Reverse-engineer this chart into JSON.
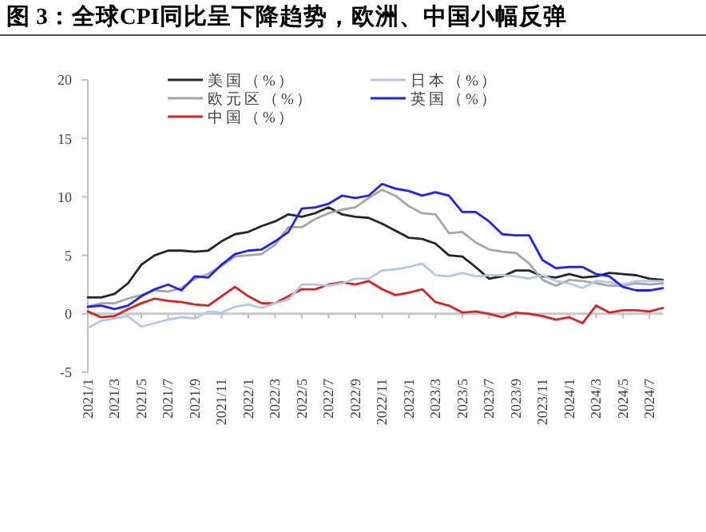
{
  "chart_data": {
    "type": "line",
    "title": "图 3：全球CPI同比呈下降趋势，欧洲、中国小幅反弹",
    "categories": [
      "2021/1",
      null,
      "2021/3",
      null,
      "2021/5",
      null,
      "2021/7",
      null,
      "2021/9",
      null,
      "2021/11",
      null,
      "2022/1",
      null,
      "2022/3",
      null,
      "2022/5",
      null,
      "2022/7",
      null,
      "2022/9",
      null,
      "2022/11",
      null,
      "2023/1",
      null,
      "2023/3",
      null,
      "2023/5",
      null,
      "2023/7",
      null,
      "2023/9",
      null,
      "2023/11",
      null,
      "2024/1",
      null,
      "2024/3",
      null,
      "2024/5",
      null,
      "2024/7",
      null
    ],
    "series": [
      {
        "name": "美国（%）",
        "color": "#262626",
        "values": [
          1.4,
          1.4,
          1.7,
          2.6,
          4.2,
          5.0,
          5.4,
          5.4,
          5.3,
          5.4,
          6.2,
          6.8,
          7.0,
          7.5,
          7.9,
          8.5,
          8.3,
          8.6,
          9.1,
          8.5,
          8.3,
          8.2,
          7.7,
          7.1,
          6.5,
          6.4,
          6.0,
          5.0,
          4.9,
          4.0,
          3.0,
          3.2,
          3.7,
          3.7,
          3.2,
          3.1,
          3.4,
          3.1,
          3.2,
          3.5,
          3.4,
          3.3,
          3.0,
          2.9
        ]
      },
      {
        "name": "欧元区（%）",
        "color": "#a6a6a6",
        "values": [
          0.6,
          0.9,
          0.9,
          1.3,
          1.6,
          2.0,
          1.9,
          2.2,
          3.0,
          3.4,
          4.1,
          4.9,
          5.0,
          5.1,
          5.9,
          7.4,
          7.4,
          8.1,
          8.6,
          8.9,
          9.1,
          9.9,
          10.6,
          10.1,
          9.2,
          8.6,
          8.5,
          6.9,
          7.0,
          6.1,
          5.5,
          5.3,
          5.2,
          4.3,
          2.9,
          2.4,
          2.9,
          2.8,
          2.6,
          2.4,
          2.4,
          2.6,
          2.5,
          2.6
        ]
      },
      {
        "name": "中国（%）",
        "color": "#e02020",
        "values": [
          0.2,
          -0.3,
          -0.2,
          0.4,
          0.9,
          1.3,
          1.1,
          1.0,
          0.8,
          0.7,
          1.5,
          2.3,
          1.5,
          0.9,
          0.9,
          1.5,
          2.1,
          2.1,
          2.5,
          2.7,
          2.5,
          2.8,
          2.1,
          1.6,
          1.8,
          2.1,
          1.0,
          0.7,
          0.1,
          0.2,
          0.0,
          -0.3,
          0.1,
          0.0,
          -0.2,
          -0.5,
          -0.3,
          -0.8,
          0.7,
          0.1,
          0.3,
          0.3,
          0.2,
          0.5
        ]
      },
      {
        "name": "日本（%）",
        "color": "#b4c7e7",
        "values": [
          -1.2,
          -0.6,
          -0.4,
          -0.2,
          -1.1,
          -0.8,
          -0.5,
          -0.3,
          -0.4,
          0.2,
          0.1,
          0.6,
          0.8,
          0.5,
          0.9,
          1.2,
          2.5,
          2.5,
          2.4,
          2.6,
          3.0,
          3.0,
          3.7,
          3.8,
          4.0,
          4.3,
          3.3,
          3.2,
          3.5,
          3.2,
          3.3,
          3.3,
          3.2,
          3.0,
          3.3,
          2.8,
          2.6,
          2.2,
          2.8,
          2.7,
          2.5,
          2.8,
          2.8,
          2.8
        ]
      },
      {
        "name": "英国（%）",
        "color": "#2020ff",
        "values": [
          0.6,
          0.7,
          0.4,
          0.7,
          1.5,
          2.1,
          2.5,
          2.0,
          3.2,
          3.1,
          4.2,
          5.1,
          5.4,
          5.5,
          6.2,
          7.0,
          9.0,
          9.1,
          9.4,
          10.1,
          9.9,
          10.1,
          11.1,
          10.7,
          10.5,
          10.1,
          10.4,
          10.1,
          8.7,
          8.7,
          7.9,
          6.8,
          6.7,
          6.7,
          4.6,
          3.9,
          4.0,
          4.0,
          3.4,
          3.2,
          2.3,
          2.0,
          2.0,
          2.2
        ]
      }
    ],
    "ylim": [
      -5,
      20
    ],
    "yticks": [
      -5,
      0,
      5,
      10,
      15,
      20
    ],
    "legend": "top",
    "marker": "none",
    "line_style": "solid"
  }
}
